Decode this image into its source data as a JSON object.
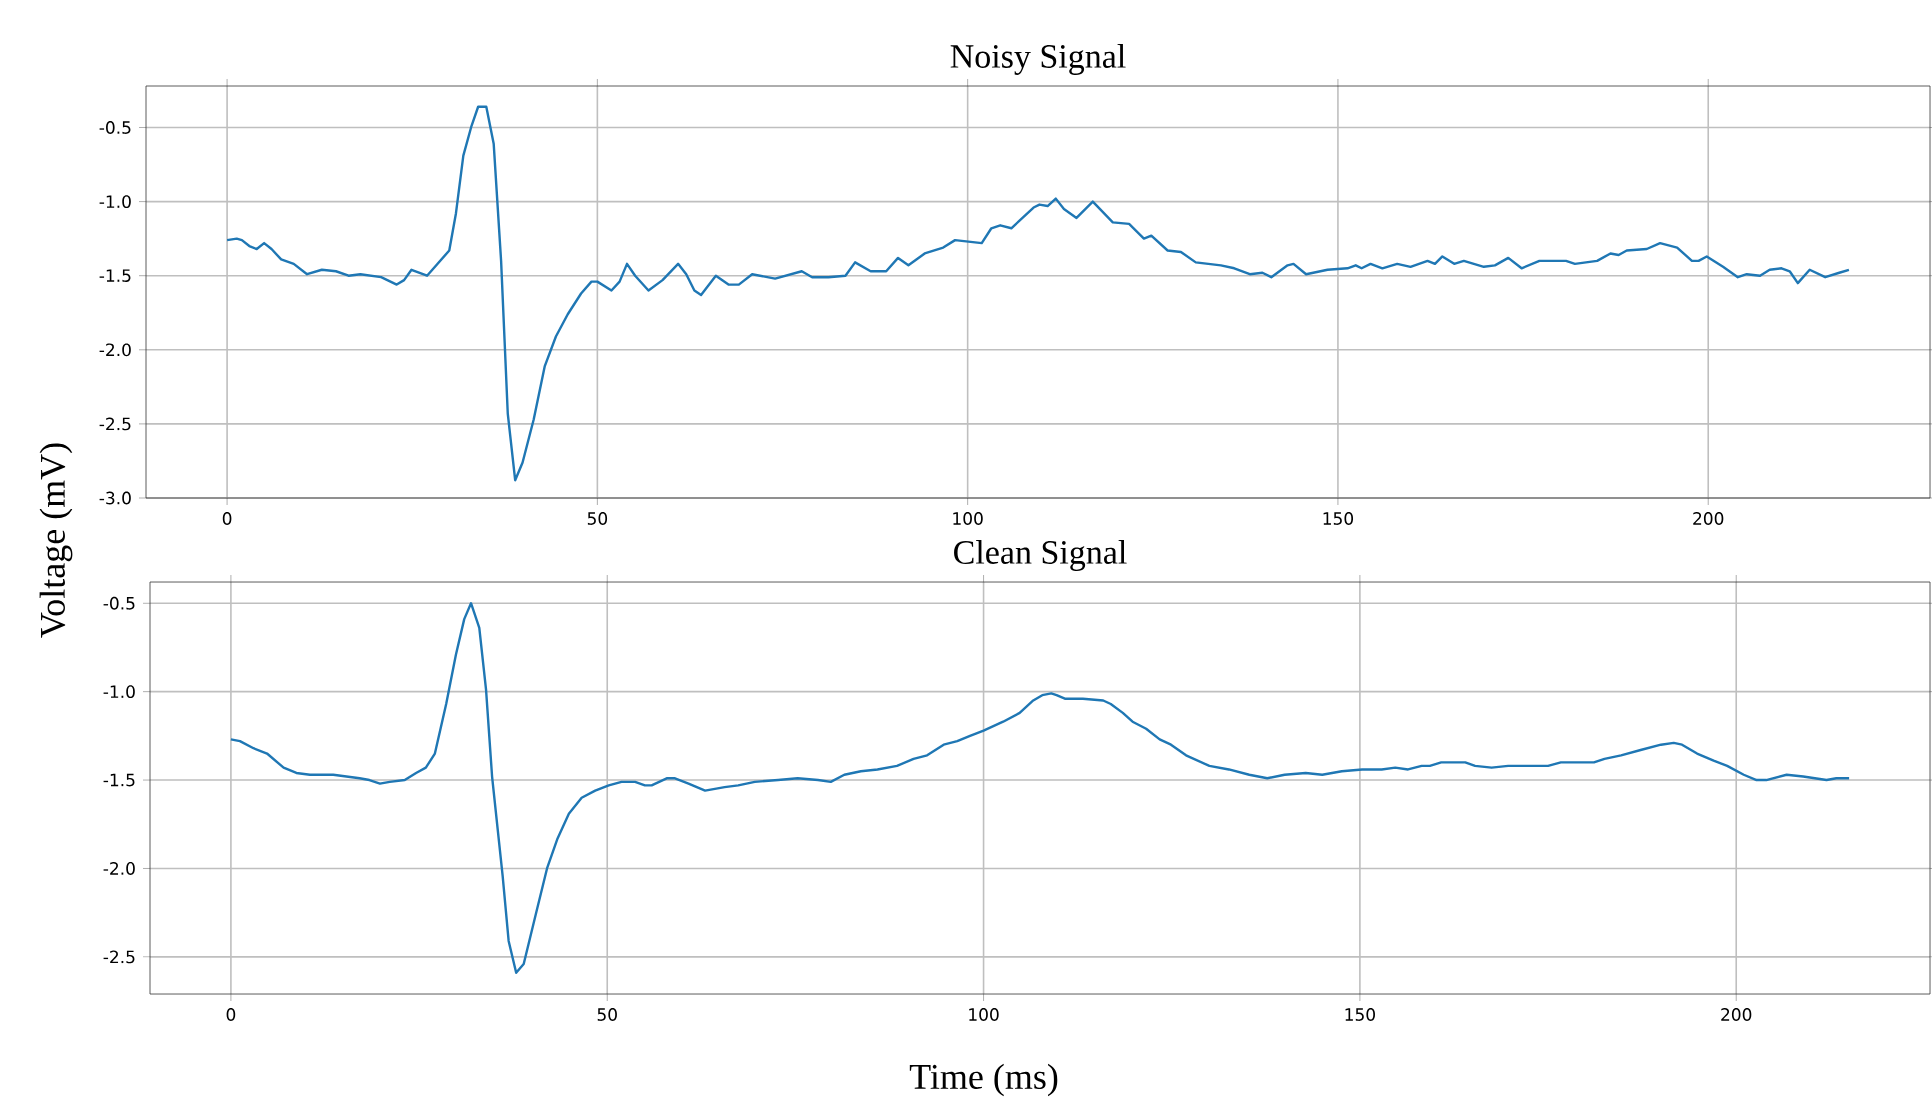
{
  "chart_data": [
    {
      "type": "line",
      "title": "Noisy Signal",
      "ylabel": "Voltage (mV)",
      "color": "#1f77b4",
      "grid": true,
      "xlim": [
        -10.95,
        229.95
      ],
      "ylim": [
        -3.0,
        -0.22
      ],
      "xticks": [
        0,
        50,
        100,
        150,
        200
      ],
      "yticks": [
        {
          "value": -3.0,
          "label": "-3.0"
        },
        {
          "value": -2.5,
          "label": "-2.5"
        },
        {
          "value": -2.0,
          "label": "-2.0"
        },
        {
          "value": -1.5,
          "label": "-1.5"
        },
        {
          "value": -1.0,
          "label": "-1.0"
        },
        {
          "value": -0.5,
          "label": "-0.5"
        }
      ],
      "x": [
        0,
        1.3,
        2,
        3,
        4,
        5,
        6,
        7.3,
        9,
        10.8,
        12.8,
        14.7,
        16.4,
        18,
        20.8,
        22.9,
        23.9,
        24.9,
        27,
        30,
        30.9,
        31.9,
        33,
        33.9,
        35,
        36,
        37,
        37.9,
        38.9,
        39.9,
        41.4,
        42.9,
        44.4,
        46,
        47.8,
        49.2,
        50,
        51.9,
        53,
        54,
        55.1,
        56.9,
        58.8,
        60.9,
        62,
        63.1,
        64,
        66,
        67.7,
        69.1,
        70.9,
        74,
        77.6,
        79,
        81.2,
        83.5,
        84.8,
        86.9,
        89,
        90.6,
        92,
        94.2,
        96.7,
        98.3,
        100.1,
        101.9,
        103.2,
        104.4,
        105.9,
        108.9,
        109.7,
        110.8,
        111.9,
        113,
        114.7,
        116.9,
        119.6,
        121.8,
        123.8,
        124.8,
        127,
        128.8,
        130.8,
        134.2,
        136,
        138.1,
        139.8,
        141,
        143.2,
        144,
        145.7,
        148.6,
        151.3,
        152.4,
        153.2,
        154.4,
        156,
        158,
        159.8,
        162.1,
        163.1,
        164.1,
        165.7,
        167,
        169.7,
        171.2,
        173,
        174.8,
        177.2,
        180.8,
        182,
        185,
        186.8,
        187.9,
        189,
        191.7,
        193.5,
        195.8,
        197.8,
        198.7,
        199.8,
        202,
        204,
        205.2,
        207,
        208.3,
        209.9,
        211,
        212.1,
        213.7,
        215.8,
        217.7,
        219
      ],
      "values": [
        -1.26,
        -1.25,
        -1.26,
        -1.3,
        -1.32,
        -1.28,
        -1.32,
        -1.39,
        -1.42,
        -1.49,
        -1.46,
        -1.47,
        -1.5,
        -1.49,
        -1.51,
        -1.56,
        -1.53,
        -1.46,
        -1.5,
        -1.33,
        -1.08,
        -0.69,
        -0.49,
        -0.36,
        -0.36,
        -0.61,
        -1.4,
        -2.43,
        -2.88,
        -2.76,
        -2.47,
        -2.11,
        -1.91,
        -1.76,
        -1.62,
        -1.54,
        -1.54,
        -1.6,
        -1.54,
        -1.42,
        -1.5,
        -1.6,
        -1.53,
        -1.42,
        -1.49,
        -1.6,
        -1.63,
        -1.5,
        -1.56,
        -1.56,
        -1.49,
        -1.52,
        -1.47,
        -1.51,
        -1.51,
        -1.5,
        -1.41,
        -1.47,
        -1.47,
        -1.38,
        -1.43,
        -1.35,
        -1.31,
        -1.26,
        -1.27,
        -1.28,
        -1.18,
        -1.16,
        -1.18,
        -1.04,
        -1.02,
        -1.03,
        -0.98,
        -1.05,
        -1.11,
        -1.0,
        -1.14,
        -1.15,
        -1.25,
        -1.23,
        -1.33,
        -1.34,
        -1.41,
        -1.43,
        -1.45,
        -1.49,
        -1.48,
        -1.51,
        -1.43,
        -1.42,
        -1.49,
        -1.46,
        -1.45,
        -1.43,
        -1.45,
        -1.42,
        -1.45,
        -1.42,
        -1.44,
        -1.4,
        -1.42,
        -1.37,
        -1.42,
        -1.4,
        -1.44,
        -1.43,
        -1.38,
        -1.45,
        -1.4,
        -1.4,
        -1.42,
        -1.4,
        -1.35,
        -1.36,
        -1.33,
        -1.32,
        -1.28,
        -1.31,
        -1.4,
        -1.4,
        -1.37,
        -1.44,
        -1.51,
        -1.49,
        -1.5,
        -1.46,
        -1.45,
        -1.47,
        -1.55,
        -1.46,
        -1.51,
        -1.48,
        -1.46
      ]
    },
    {
      "type": "line",
      "title": "Clean Signal",
      "xlabel": "Time (ms)",
      "color": "#1f77b4",
      "grid": true,
      "xlim": [
        -10.75,
        225.75
      ],
      "ylim": [
        -2.71,
        -0.38
      ],
      "xticks": [
        0,
        50,
        100,
        150,
        200
      ],
      "yticks": [
        {
          "value": -2.5,
          "label": "-2.5"
        },
        {
          "value": -2.0,
          "label": "-2.0"
        },
        {
          "value": -1.5,
          "label": "-1.5"
        },
        {
          "value": -1.0,
          "label": "-1.0"
        },
        {
          "value": -0.5,
          "label": "-0.5"
        }
      ],
      "x": [
        0,
        1.2,
        3,
        4.8,
        7,
        8.7,
        10.5,
        13.6,
        17.1,
        18.4,
        19.8,
        21.1,
        23.1,
        24.6,
        25.9,
        27.1,
        28.6,
        29.9,
        31,
        31.9,
        33,
        33.9,
        34.7,
        36.1,
        36.9,
        37.9,
        38.9,
        40.5,
        42,
        43.4,
        44.9,
        46.6,
        48.4,
        50.2,
        51.9,
        53.7,
        55,
        55.9,
        57.9,
        59,
        60.8,
        63,
        65.6,
        67.4,
        69.6,
        72.7,
        75.3,
        78,
        79.7,
        81.5,
        83.7,
        85.9,
        88.5,
        90.7,
        92.5,
        94.7,
        96.5,
        98.2,
        100,
        102.6,
        104.8,
        106.6,
        107.8,
        109,
        109.7,
        110.8,
        113.2,
        115.9,
        116.9,
        118.5,
        119.8,
        121.6,
        123.4,
        124.9,
        126.9,
        130,
        132.6,
        135.3,
        137.7,
        140,
        142.8,
        145,
        147.6,
        150.3,
        152.9,
        154.7,
        156.4,
        158.2,
        159.3,
        160.8,
        164,
        165.3,
        167.5,
        169.7,
        173.2,
        175,
        176.7,
        181.1,
        182.5,
        184.7,
        187.3,
        190,
        191.7,
        192.8,
        194.8,
        197,
        198.8,
        201,
        202.7,
        204,
        206.7,
        208.9,
        212,
        213.3,
        215
      ],
      "values": [
        -1.27,
        -1.28,
        -1.32,
        -1.35,
        -1.43,
        -1.46,
        -1.47,
        -1.47,
        -1.49,
        -1.5,
        -1.52,
        -1.51,
        -1.5,
        -1.46,
        -1.43,
        -1.35,
        -1.07,
        -0.79,
        -0.59,
        -0.5,
        -0.64,
        -0.99,
        -1.48,
        -2.04,
        -2.41,
        -2.59,
        -2.54,
        -2.26,
        -2.0,
        -1.83,
        -1.69,
        -1.6,
        -1.56,
        -1.53,
        -1.51,
        -1.51,
        -1.53,
        -1.53,
        -1.49,
        -1.49,
        -1.52,
        -1.56,
        -1.54,
        -1.53,
        -1.51,
        -1.5,
        -1.49,
        -1.5,
        -1.51,
        -1.47,
        -1.45,
        -1.44,
        -1.42,
        -1.38,
        -1.36,
        -1.3,
        -1.28,
        -1.25,
        -1.22,
        -1.17,
        -1.12,
        -1.05,
        -1.02,
        -1.01,
        -1.02,
        -1.04,
        -1.04,
        -1.05,
        -1.07,
        -1.12,
        -1.17,
        -1.21,
        -1.27,
        -1.3,
        -1.36,
        -1.42,
        -1.44,
        -1.47,
        -1.49,
        -1.47,
        -1.46,
        -1.47,
        -1.45,
        -1.44,
        -1.44,
        -1.43,
        -1.44,
        -1.42,
        -1.42,
        -1.4,
        -1.4,
        -1.42,
        -1.43,
        -1.42,
        -1.42,
        -1.42,
        -1.4,
        -1.4,
        -1.38,
        -1.36,
        -1.33,
        -1.3,
        -1.29,
        -1.3,
        -1.35,
        -1.39,
        -1.42,
        -1.47,
        -1.5,
        -1.5,
        -1.47,
        -1.48,
        -1.5,
        -1.49,
        -1.49
      ]
    }
  ]
}
